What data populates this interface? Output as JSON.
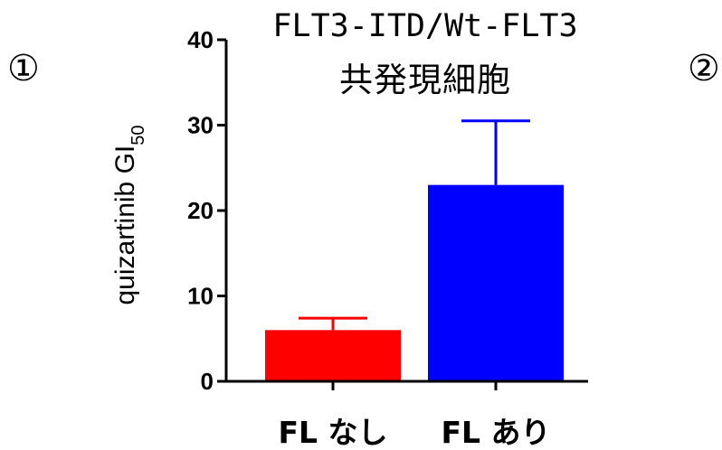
{
  "marks": {
    "left": "①",
    "right": "②"
  },
  "chart_data": {
    "type": "bar",
    "title_lines": [
      "FLT3-ITD/Wt-FLT3",
      "共発現細胞"
    ],
    "xlabel": "",
    "ylabel": {
      "main": "quizartinib GI",
      "sub": "50"
    },
    "ylim": [
      0,
      40
    ],
    "yticks": [
      0,
      10,
      20,
      30,
      40
    ],
    "categories": [
      "FL なし",
      "FL あり"
    ],
    "values": [
      6,
      23
    ],
    "errors": [
      1.4,
      7.5
    ],
    "colors": [
      "#ff0000",
      "#0000ff"
    ],
    "grid": false
  }
}
